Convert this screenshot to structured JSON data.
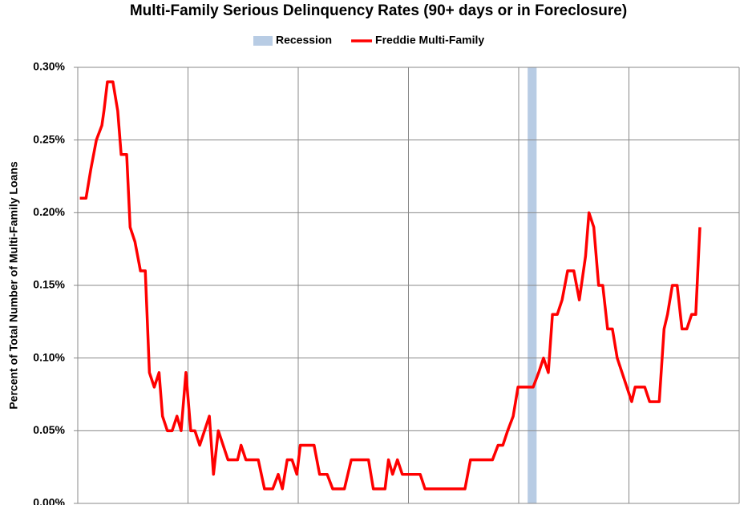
{
  "chart_data": {
    "type": "line",
    "title": "Multi-Family Serious Delinquency Rates (90+ days or in Foreclosure)",
    "y_label": "Percent of Total Number of Multi-Family Loans",
    "bands": [
      {
        "name": "Recession",
        "color": "#b8cce4",
        "start": 65.3,
        "end": 66.6
      }
    ],
    "x": [
      0.3,
      1.2,
      1.9,
      2.7,
      3.5,
      3.8,
      4.3,
      5.1,
      5.8,
      6.3,
      7.1,
      7.6,
      8.3,
      9.1,
      9.8,
      10.4,
      11.1,
      11.8,
      12.3,
      13.0,
      13.7,
      14.4,
      15.0,
      15.7,
      16.4,
      17.0,
      17.7,
      18.4,
      19.1,
      19.7,
      20.4,
      21.1,
      21.8,
      22.5,
      23.2,
      23.7,
      24.4,
      25.1,
      26.2,
      27.1,
      28.3,
      29.1,
      29.7,
      30.4,
      31.1,
      31.8,
      32.3,
      34.3,
      35.1,
      36.2,
      37.0,
      38.7,
      39.7,
      42.2,
      42.9,
      44.6,
      45.1,
      45.7,
      46.4,
      47.1,
      49.7,
      50.4,
      56.2,
      57.0,
      60.2,
      61.0,
      61.7,
      62.4,
      63.2,
      63.9,
      66.1,
      66.9,
      67.6,
      68.3,
      68.9,
      69.6,
      70.3,
      71.1,
      72.0,
      72.8,
      73.7,
      74.2,
      74.9,
      75.6,
      76.2,
      76.9,
      77.6,
      78.3,
      79.0,
      79.7,
      80.4,
      80.9,
      82.3,
      83.0,
      84.4,
      85.1,
      85.6,
      86.3,
      87.0,
      87.7,
      88.4,
      89.1,
      89.7,
      90.3
    ],
    "series": [
      {
        "name": "Freddie Multi-Family",
        "color": "#ff0000",
        "values": [
          0.21,
          0.21,
          0.23,
          0.25,
          0.26,
          0.27,
          0.29,
          0.29,
          0.27,
          0.24,
          0.24,
          0.19,
          0.18,
          0.16,
          0.16,
          0.09,
          0.08,
          0.09,
          0.06,
          0.05,
          0.05,
          0.06,
          0.05,
          0.09,
          0.05,
          0.05,
          0.04,
          0.05,
          0.06,
          0.02,
          0.05,
          0.04,
          0.03,
          0.03,
          0.03,
          0.04,
          0.03,
          0.03,
          0.03,
          0.01,
          0.01,
          0.02,
          0.01,
          0.03,
          0.03,
          0.02,
          0.04,
          0.04,
          0.02,
          0.02,
          0.01,
          0.01,
          0.03,
          0.03,
          0.01,
          0.01,
          0.03,
          0.02,
          0.03,
          0.02,
          0.02,
          0.01,
          0.01,
          0.03,
          0.03,
          0.04,
          0.04,
          0.05,
          0.06,
          0.08,
          0.08,
          0.09,
          0.1,
          0.09,
          0.13,
          0.13,
          0.14,
          0.16,
          0.16,
          0.14,
          0.17,
          0.2,
          0.19,
          0.15,
          0.15,
          0.12,
          0.12,
          0.1,
          0.09,
          0.08,
          0.07,
          0.08,
          0.08,
          0.07,
          0.07,
          0.12,
          0.13,
          0.15,
          0.15,
          0.12,
          0.12,
          0.13,
          0.13,
          0.19
        ]
      }
    ],
    "xlim": [
      0,
      96
    ],
    "xticks": [
      0,
      16,
      32,
      48,
      64,
      80,
      96
    ],
    "ylim": [
      0,
      0.3
    ],
    "yticks": [
      {
        "value": 0,
        "label": "0.00%"
      },
      {
        "value": 0.05,
        "label": "0.05%"
      },
      {
        "value": 0.1,
        "label": "0.10%"
      },
      {
        "value": 0.15,
        "label": "0.15%"
      },
      {
        "value": 0.2,
        "label": "0.20%"
      },
      {
        "value": 0.25,
        "label": "0.25%"
      },
      {
        "value": 0.3,
        "label": "0.30%"
      }
    ],
    "grid": true
  }
}
